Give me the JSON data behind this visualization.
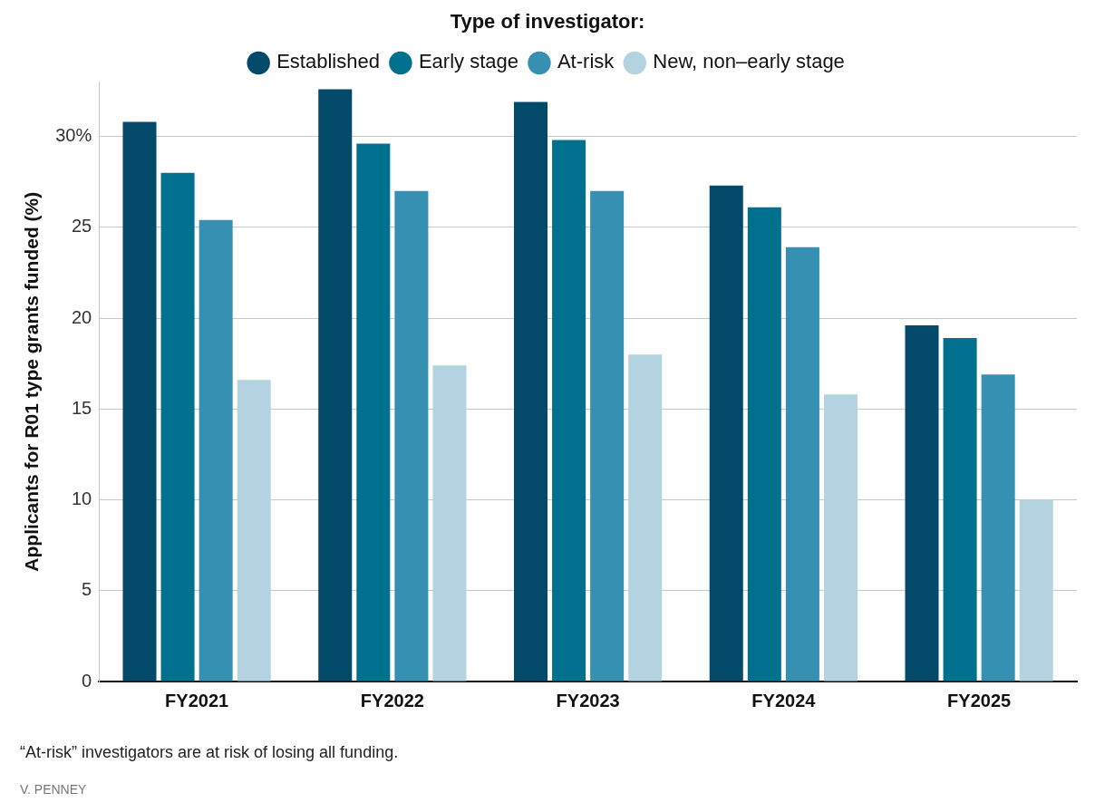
{
  "chart_data": {
    "type": "bar",
    "legend_title": "Type of investigator:",
    "ylabel": "Applicants for R01 type grants funded (%)",
    "categories": [
      "FY2021",
      "FY2022",
      "FY2023",
      "FY2024",
      "FY2025"
    ],
    "series": [
      {
        "name": "Established",
        "color": "#02496a",
        "values": [
          30.8,
          32.6,
          31.9,
          27.3,
          19.6
        ]
      },
      {
        "name": "Early stage",
        "color": "#00708f",
        "values": [
          28.0,
          29.6,
          29.8,
          26.1,
          18.9
        ]
      },
      {
        "name": "At-risk",
        "color": "#3590b2",
        "values": [
          25.4,
          27.0,
          27.0,
          23.9,
          16.9
        ]
      },
      {
        "name": "New, non–early stage",
        "color": "#b3d3e1",
        "values": [
          16.6,
          17.4,
          18.0,
          15.8,
          10.0
        ]
      }
    ],
    "ylim": [
      0,
      33
    ],
    "yticks": [
      0,
      5,
      10,
      15,
      20,
      25,
      {
        "value": 30,
        "label": "30%"
      }
    ],
    "grid": "y",
    "legend": "top",
    "annotations": [
      "“At-risk” investigators are at risk of losing all funding.",
      "V. PENNEY"
    ]
  }
}
